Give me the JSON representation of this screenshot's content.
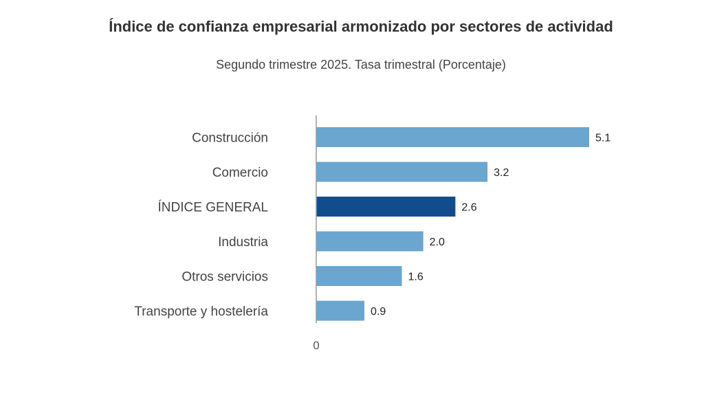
{
  "chart_data": {
    "type": "bar",
    "orientation": "horizontal",
    "title": "Índice de confianza empresarial armonizado por sectores de actividad",
    "subtitle": "Segundo trimestre 2025. Tasa trimestral (Porcentaje)",
    "categories": [
      "Construcción",
      "Comercio",
      "ÍNDICE GENERAL",
      "Industria",
      "Otros servicios",
      "Transporte y hostelería"
    ],
    "values": [
      5.1,
      3.2,
      2.6,
      2.0,
      1.6,
      0.9
    ],
    "value_labels": [
      "5.1",
      "3.2",
      "2.6",
      "2.0",
      "1.6",
      "0.9"
    ],
    "x_ticks": [
      "0"
    ],
    "xlim": [
      0,
      5.1
    ],
    "grid": false,
    "colors": {
      "default": "#6aa6cf",
      "highlight": "#124d8b"
    },
    "highlight_category": "ÍNDICE GENERAL"
  }
}
